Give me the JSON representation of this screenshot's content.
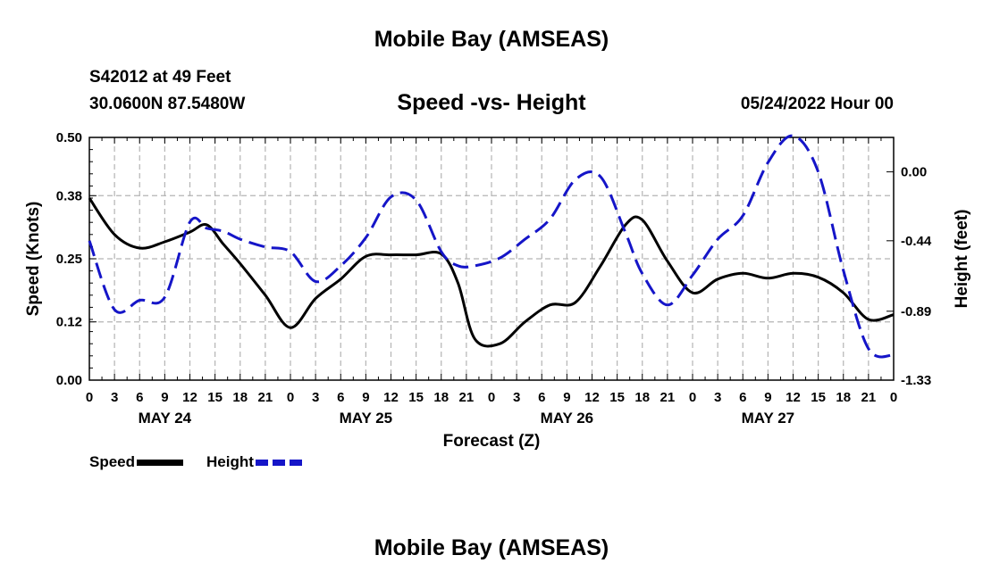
{
  "header": {
    "title": "Mobile Bay (AMSEAS)",
    "station": "S42012 at 49 Feet",
    "coords": "30.0600N  87.5480W",
    "subtitle": "Speed -vs- Height",
    "date": "05/24/2022 Hour 00"
  },
  "footer": {
    "title": "Mobile Bay (AMSEAS)"
  },
  "legend": {
    "speed_label": "Speed",
    "height_label": "Height"
  },
  "colors": {
    "speed": "#000000",
    "height": "#1515c8",
    "grid": "#b4b4b4"
  },
  "chart_data": {
    "type": "line",
    "title": "Speed -vs- Height",
    "xlabel": "Forecast (Z)",
    "ylabel_left": "Speed (Knots)",
    "ylabel_right": "Height (feet)",
    "x_range_hours": [
      0,
      96
    ],
    "x_tick_step_hours": 3,
    "x_tick_labels": [
      "0",
      "3",
      "6",
      "9",
      "12",
      "15",
      "18",
      "21",
      "0",
      "3",
      "6",
      "9",
      "12",
      "15",
      "18",
      "21",
      "0",
      "3",
      "6",
      "9",
      "12",
      "15",
      "18",
      "21",
      "0",
      "3",
      "6",
      "9",
      "12",
      "15",
      "18",
      "21",
      "0"
    ],
    "day_labels": [
      {
        "label": "MAY 24",
        "hour": 9
      },
      {
        "label": "MAY 25",
        "hour": 33
      },
      {
        "label": "MAY 26",
        "hour": 57
      },
      {
        "label": "MAY 27",
        "hour": 81
      }
    ],
    "ylim_left": [
      0.0,
      0.5
    ],
    "ylim_right": [
      -1.33,
      0.22
    ],
    "left_ticks": [
      "0.00",
      "0.12",
      "0.25",
      "0.38",
      "0.50"
    ],
    "right_ticks": [
      "-1.33",
      "-0.89",
      "-0.44",
      "0.00"
    ],
    "grid": true,
    "series": [
      {
        "name": "Speed",
        "axis": "left",
        "hours": [
          0,
          3,
          6,
          9,
          12,
          14,
          16,
          18,
          21,
          24,
          27,
          30,
          33,
          36,
          39,
          42,
          44,
          46,
          49,
          52,
          55,
          58,
          61,
          64,
          66,
          69,
          72,
          75,
          78,
          81,
          84,
          87,
          90,
          93,
          96
        ],
        "values": [
          0.375,
          0.3,
          0.272,
          0.285,
          0.305,
          0.32,
          0.28,
          0.24,
          0.175,
          0.108,
          0.168,
          0.208,
          0.255,
          0.258,
          0.258,
          0.26,
          0.2,
          0.085,
          0.075,
          0.12,
          0.155,
          0.16,
          0.235,
          0.32,
          0.33,
          0.245,
          0.18,
          0.208,
          0.22,
          0.21,
          0.22,
          0.212,
          0.18,
          0.125,
          0.135
        ]
      },
      {
        "name": "Height",
        "axis": "right",
        "hours": [
          0,
          3,
          6,
          9,
          12,
          14,
          16,
          18,
          21,
          24,
          27,
          30,
          33,
          36,
          39,
          42,
          44,
          46,
          49,
          52,
          55,
          58,
          61,
          64,
          66,
          69,
          72,
          75,
          78,
          81,
          84,
          87,
          90,
          93,
          96
        ],
        "values": [
          -0.44,
          -0.88,
          -0.82,
          -0.8,
          -0.32,
          -0.36,
          -0.38,
          -0.43,
          -0.48,
          -0.51,
          -0.7,
          -0.6,
          -0.42,
          -0.16,
          -0.18,
          -0.51,
          -0.6,
          -0.6,
          -0.55,
          -0.43,
          -0.3,
          -0.05,
          -0.03,
          -0.39,
          -0.65,
          -0.85,
          -0.66,
          -0.43,
          -0.28,
          0.06,
          0.23,
          0.0,
          -0.63,
          -1.13,
          -1.17
        ]
      }
    ]
  }
}
